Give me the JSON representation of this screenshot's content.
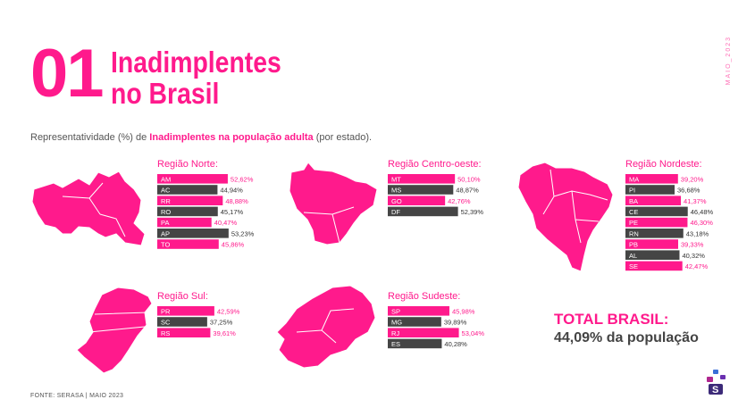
{
  "header": {
    "number": "01",
    "title_line1": "Inadimplentes",
    "title_line2": "no Brasil",
    "side_label": "MAIO_2023"
  },
  "subtitle": {
    "prefix": "Representatividade (%) de ",
    "highlight": "Inadimplentes na população adulta",
    "suffix": " (por estado)."
  },
  "chart_data": [
    {
      "type": "bar",
      "title": "Região Norte:",
      "categories": [
        "AM",
        "AC",
        "RR",
        "RO",
        "PA",
        "AP",
        "TO"
      ],
      "values": [
        52.62,
        44.94,
        48.88,
        45.17,
        40.47,
        53.23,
        45.86
      ],
      "value_labels": [
        "52,62%",
        "44,94%",
        "48,88%",
        "45,17%",
        "40,47%",
        "53,23%",
        "45,86%"
      ],
      "colors": [
        "#ff1a8c",
        "#454545",
        "#ff1a8c",
        "#454545",
        "#ff1a8c",
        "#454545",
        "#ff1a8c"
      ]
    },
    {
      "type": "bar",
      "title": "Região Centro-oeste:",
      "categories": [
        "MT",
        "MS",
        "GO",
        "DF"
      ],
      "values": [
        50.1,
        48.87,
        42.76,
        52.39
      ],
      "value_labels": [
        "50,10%",
        "48,87%",
        "42,76%",
        "52,39%"
      ],
      "colors": [
        "#ff1a8c",
        "#454545",
        "#ff1a8c",
        "#454545"
      ]
    },
    {
      "type": "bar",
      "title": "Região Nordeste:",
      "categories": [
        "MA",
        "PI",
        "BA",
        "CE",
        "PE",
        "RN",
        "PB",
        "AL",
        "SE"
      ],
      "values": [
        39.2,
        36.68,
        41.37,
        46.48,
        46.3,
        43.18,
        39.33,
        40.32,
        42.47
      ],
      "value_labels": [
        "39,20%",
        "36,68%",
        "41,37%",
        "46,48%",
        "46,30%",
        "43,18%",
        "39,33%",
        "40,32%",
        "42,47%"
      ],
      "colors": [
        "#ff1a8c",
        "#454545",
        "#ff1a8c",
        "#454545",
        "#ff1a8c",
        "#454545",
        "#ff1a8c",
        "#454545",
        "#ff1a8c"
      ]
    },
    {
      "type": "bar",
      "title": "Região Sul:",
      "categories": [
        "PR",
        "SC",
        "RS"
      ],
      "values": [
        42.59,
        37.25,
        39.61
      ],
      "value_labels": [
        "42,59%",
        "37,25%",
        "39,61%"
      ],
      "colors": [
        "#ff1a8c",
        "#454545",
        "#ff1a8c"
      ]
    },
    {
      "type": "bar",
      "title": "Região Sudeste:",
      "categories": [
        "SP",
        "MG",
        "RJ",
        "ES"
      ],
      "values": [
        45.98,
        39.89,
        53.04,
        40.28
      ],
      "value_labels": [
        "45,98%",
        "39,89%",
        "53,04%",
        "40,28%"
      ],
      "colors": [
        "#ff1a8c",
        "#454545",
        "#ff1a8c",
        "#454545"
      ]
    }
  ],
  "total": {
    "label": "TOTAL BRASIL:",
    "value": "44,09% da população"
  },
  "footer": {
    "source": "FONTE: SERASA |  MAIO 2023"
  },
  "colors": {
    "accent": "#ff1a8c",
    "dark": "#454545"
  }
}
